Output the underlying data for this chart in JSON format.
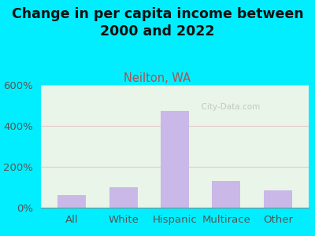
{
  "title": "Change in per capita income between\n2000 and 2022",
  "subtitle": "Neilton, WA",
  "categories": [
    "All",
    "White",
    "Hispanic",
    "Multirace",
    "Other"
  ],
  "values": [
    60,
    100,
    475,
    130,
    85
  ],
  "bar_color": "#c9b8e8",
  "title_color": "#111111",
  "subtitle_color": "#b05050",
  "background_outer": "#00eeff",
  "background_inner": "#e8f5e8",
  "grid_color": "#e8c8c8",
  "tick_color": "#555555",
  "ylim": [
    0,
    600
  ],
  "yticks": [
    0,
    200,
    400,
    600
  ],
  "yticklabels": [
    "0%",
    "200%",
    "400%",
    "600%"
  ],
  "watermark": "  City-Data.com",
  "title_fontsize": 12.5,
  "subtitle_fontsize": 10.5,
  "tick_fontsize": 9.5
}
